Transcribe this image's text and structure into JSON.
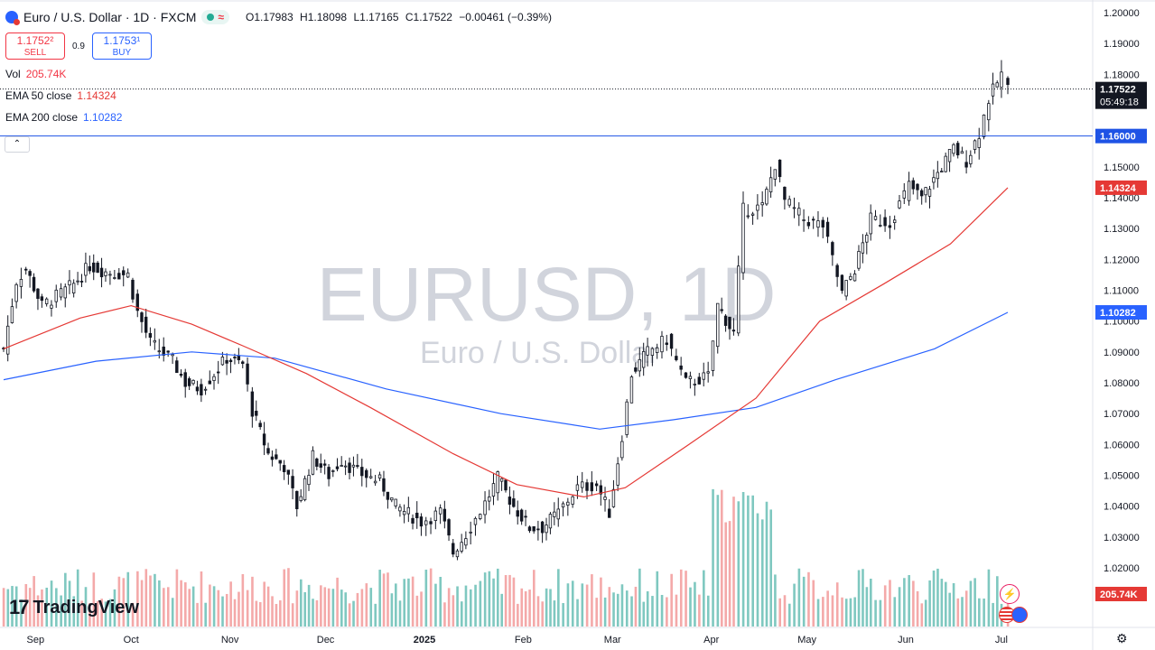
{
  "header": {
    "symbol_title": "Euro / U.S. Dollar · 1D · FXCM",
    "ohlc": {
      "o_label": "O",
      "o": "1.17983",
      "h_label": "H",
      "h": "1.18098",
      "l_label": "L",
      "l": "1.17165",
      "c_label": "C",
      "c": "1.17522",
      "change": "−0.00461 (−0.39%)"
    }
  },
  "trade": {
    "sell_price": "1.1752²",
    "sell_label": "SELL",
    "spread": "0.9",
    "buy_price": "1.1753¹",
    "buy_label": "BUY"
  },
  "indicators": {
    "vol_label": "Vol",
    "vol_value": "205.74K",
    "ema50_label": "EMA 50 close",
    "ema50_value": "1.14324",
    "ema200_label": "EMA 200 close",
    "ema200_value": "1.10282"
  },
  "collapse_icon": "chevron-up-icon",
  "watermark": {
    "symbol": "EURUSD, 1D",
    "name": "Euro / U.S. Dollar"
  },
  "branding": {
    "logo_text": "TradingView",
    "logo_mark": "17"
  },
  "colors": {
    "up": "#26a69a",
    "down": "#131722",
    "ema50": "#e53935",
    "ema200": "#2962ff",
    "price_line": "#1e53e5",
    "vol_up": "#7fc8c0",
    "vol_down": "#f4a9a9"
  },
  "chart_data": {
    "type": "candlestick",
    "title": "Euro / U.S. Dollar · 1D · FXCM",
    "ylim": [
      1.015,
      1.2025
    ],
    "y_ticks": [
      "1.20000",
      "1.19000",
      "1.18000",
      "1.17000",
      "1.16000",
      "1.15000",
      "1.14000",
      "1.13000",
      "1.12000",
      "1.11000",
      "1.10000",
      "1.09000",
      "1.08000",
      "1.07000",
      "1.06000",
      "1.05000",
      "1.04000",
      "1.03000",
      "1.02000"
    ],
    "x_ticks": [
      "Sep",
      "Oct",
      "Nov",
      "Dec",
      "2025",
      "Feb",
      "Mar",
      "Apr",
      "May",
      "Jun",
      "Jul"
    ],
    "price_labels": {
      "last": "1.17522",
      "countdown": "05:49:18",
      "level": "1.16000",
      "ema50": "1.14324",
      "ema200": "1.10282",
      "volume": "205.74K"
    },
    "horizontal_line": 1.16,
    "last_price": 1.17522,
    "close_series": [
      {
        "date": "2024-08-22",
        "close": 1.091
      },
      {
        "date": "2024-08-26",
        "close": 1.113
      },
      {
        "date": "2024-08-29",
        "close": 1.117
      },
      {
        "date": "2024-09-03",
        "close": 1.105
      },
      {
        "date": "2024-09-09",
        "close": 1.109
      },
      {
        "date": "2024-09-13",
        "close": 1.112
      },
      {
        "date": "2024-09-18",
        "close": 1.118
      },
      {
        "date": "2024-09-23",
        "close": 1.116
      },
      {
        "date": "2024-09-30",
        "close": 1.115
      },
      {
        "date": "2024-10-03",
        "close": 1.103
      },
      {
        "date": "2024-10-07",
        "close": 1.093
      },
      {
        "date": "2024-10-14",
        "close": 1.087
      },
      {
        "date": "2024-10-18",
        "close": 1.08
      },
      {
        "date": "2024-10-23",
        "close": 1.078
      },
      {
        "date": "2024-10-31",
        "close": 1.088
      },
      {
        "date": "2024-11-05",
        "close": 1.086
      },
      {
        "date": "2024-11-08",
        "close": 1.071
      },
      {
        "date": "2024-11-13",
        "close": 1.057
      },
      {
        "date": "2024-11-18",
        "close": 1.053
      },
      {
        "date": "2024-11-22",
        "close": 1.04
      },
      {
        "date": "2024-11-27",
        "close": 1.056
      },
      {
        "date": "2024-12-02",
        "close": 1.05
      },
      {
        "date": "2024-12-06",
        "close": 1.055
      },
      {
        "date": "2024-12-11",
        "close": 1.051
      },
      {
        "date": "2024-12-18",
        "close": 1.048
      },
      {
        "date": "2024-12-23",
        "close": 1.04
      },
      {
        "date": "2024-12-31",
        "close": 1.035
      },
      {
        "date": "2025-01-06",
        "close": 1.038
      },
      {
        "date": "2025-01-10",
        "close": 1.025
      },
      {
        "date": "2025-01-14",
        "close": 1.031
      },
      {
        "date": "2025-01-20",
        "close": 1.041
      },
      {
        "date": "2025-01-24",
        "close": 1.049
      },
      {
        "date": "2025-01-29",
        "close": 1.04
      },
      {
        "date": "2025-02-03",
        "close": 1.033
      },
      {
        "date": "2025-02-07",
        "close": 1.033
      },
      {
        "date": "2025-02-12",
        "close": 1.038
      },
      {
        "date": "2025-02-18",
        "close": 1.046
      },
      {
        "date": "2025-02-24",
        "close": 1.047
      },
      {
        "date": "2025-02-28",
        "close": 1.038
      },
      {
        "date": "2025-03-04",
        "close": 1.063
      },
      {
        "date": "2025-03-07",
        "close": 1.083
      },
      {
        "date": "2025-03-12",
        "close": 1.09
      },
      {
        "date": "2025-03-18",
        "close": 1.094
      },
      {
        "date": "2025-03-24",
        "close": 1.08
      },
      {
        "date": "2025-03-31",
        "close": 1.082
      },
      {
        "date": "2025-04-03",
        "close": 1.105
      },
      {
        "date": "2025-04-08",
        "close": 1.096
      },
      {
        "date": "2025-04-11",
        "close": 1.136
      },
      {
        "date": "2025-04-17",
        "close": 1.137
      },
      {
        "date": "2025-04-21",
        "close": 1.151
      },
      {
        "date": "2025-04-24",
        "close": 1.139
      },
      {
        "date": "2025-04-30",
        "close": 1.133
      },
      {
        "date": "2025-05-06",
        "close": 1.131
      },
      {
        "date": "2025-05-12",
        "close": 1.109
      },
      {
        "date": "2025-05-16",
        "close": 1.117
      },
      {
        "date": "2025-05-21",
        "close": 1.133
      },
      {
        "date": "2025-05-27",
        "close": 1.132
      },
      {
        "date": "2025-06-02",
        "close": 1.144
      },
      {
        "date": "2025-06-06",
        "close": 1.14
      },
      {
        "date": "2025-06-11",
        "close": 1.148
      },
      {
        "date": "2025-06-16",
        "close": 1.156
      },
      {
        "date": "2025-06-20",
        "close": 1.152
      },
      {
        "date": "2025-06-24",
        "close": 1.161
      },
      {
        "date": "2025-06-27",
        "close": 1.172
      },
      {
        "date": "2025-07-01",
        "close": 1.18
      },
      {
        "date": "2025-07-03",
        "close": 1.1752
      }
    ],
    "ema50_series": [
      {
        "date": "2024-08-22",
        "value": 1.091
      },
      {
        "date": "2024-09-15",
        "value": 1.101
      },
      {
        "date": "2024-10-01",
        "value": 1.105
      },
      {
        "date": "2024-10-20",
        "value": 1.099
      },
      {
        "date": "2024-11-05",
        "value": 1.092
      },
      {
        "date": "2024-11-25",
        "value": 1.083
      },
      {
        "date": "2024-12-15",
        "value": 1.072
      },
      {
        "date": "2025-01-10",
        "value": 1.057
      },
      {
        "date": "2025-01-30",
        "value": 1.047
      },
      {
        "date": "2025-02-20",
        "value": 1.043
      },
      {
        "date": "2025-03-05",
        "value": 1.046
      },
      {
        "date": "2025-03-25",
        "value": 1.06
      },
      {
        "date": "2025-04-15",
        "value": 1.075
      },
      {
        "date": "2025-05-05",
        "value": 1.1
      },
      {
        "date": "2025-05-25",
        "value": 1.112
      },
      {
        "date": "2025-06-15",
        "value": 1.125
      },
      {
        "date": "2025-07-03",
        "value": 1.14324
      }
    ],
    "ema200_series": [
      {
        "date": "2024-08-22",
        "value": 1.081
      },
      {
        "date": "2024-09-20",
        "value": 1.087
      },
      {
        "date": "2024-10-20",
        "value": 1.09
      },
      {
        "date": "2024-11-15",
        "value": 1.088
      },
      {
        "date": "2024-12-20",
        "value": 1.078
      },
      {
        "date": "2025-01-25",
        "value": 1.07
      },
      {
        "date": "2025-02-25",
        "value": 1.065
      },
      {
        "date": "2025-03-20",
        "value": 1.068
      },
      {
        "date": "2025-04-15",
        "value": 1.072
      },
      {
        "date": "2025-05-10",
        "value": 1.081
      },
      {
        "date": "2025-06-10",
        "value": 1.091
      },
      {
        "date": "2025-07-03",
        "value": 1.10282
      }
    ]
  }
}
